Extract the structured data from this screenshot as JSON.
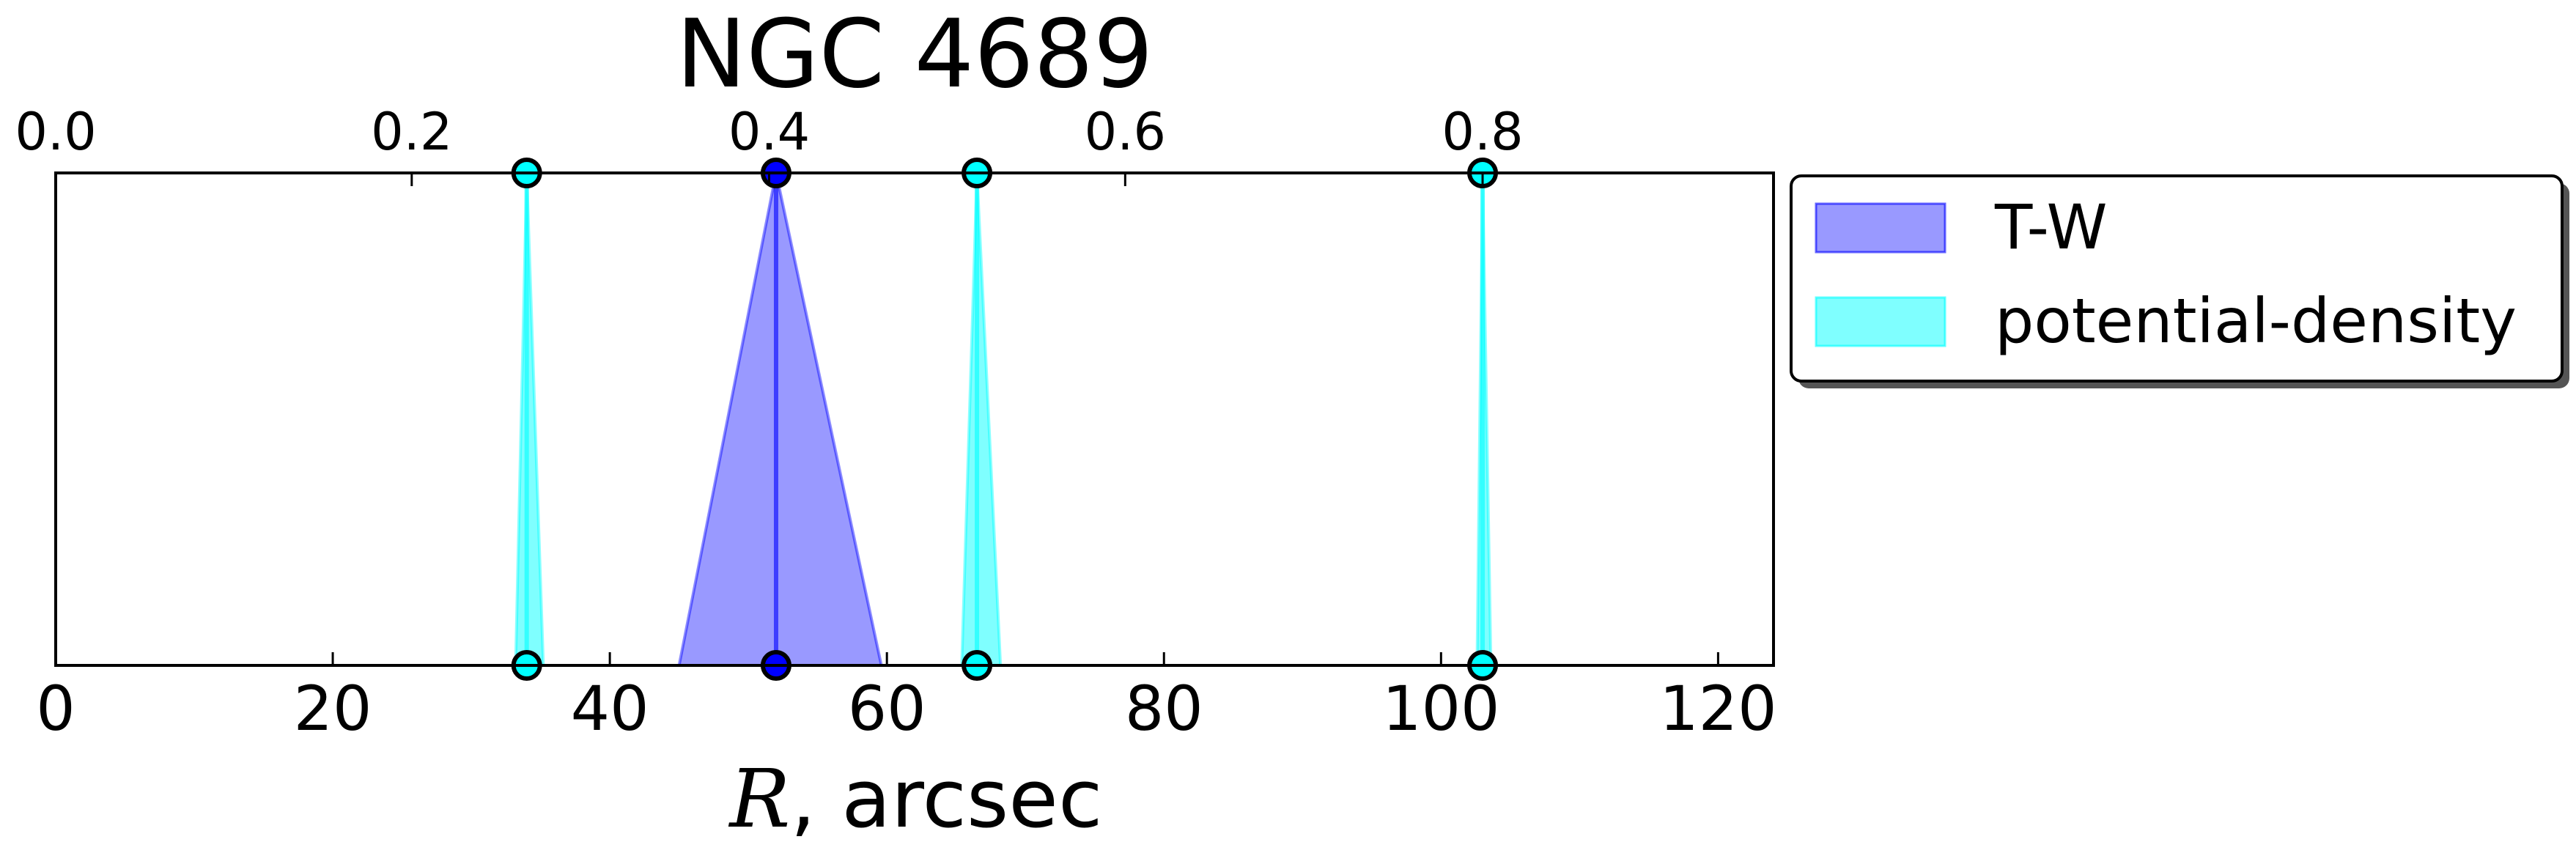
{
  "chart_data": {
    "title": "NGC 4689",
    "type": "area",
    "xlabel_math": "R",
    "xlabel_unit": ", arcsec",
    "xlim": [
      0,
      124
    ],
    "bottom_ticks": [
      0,
      20,
      40,
      60,
      80,
      100,
      120
    ],
    "top_axis": {
      "tick_labels": [
        "0.0",
        "0.2",
        "0.4",
        "0.6",
        "0.8"
      ],
      "tick_positions_arcsec": [
        0,
        25.7,
        51.5,
        77.2,
        103
      ]
    },
    "series": [
      {
        "name": "T-W",
        "color": "#0000ff",
        "fill_alpha": 0.4,
        "markers": [
          {
            "x": 52,
            "low": 45,
            "high": 59.6
          }
        ]
      },
      {
        "name": "potential-density",
        "color": "#00ffff",
        "fill_alpha": 0.5,
        "markers": [
          {
            "x": 34,
            "low": 33.2,
            "high": 35.2
          },
          {
            "x": 66.5,
            "low": 65.4,
            "high": 68.2
          },
          {
            "x": 103,
            "low": 102.6,
            "high": 103.6
          }
        ]
      }
    ],
    "legend": {
      "position": "outside-right",
      "shadow": true
    },
    "grid": false
  }
}
